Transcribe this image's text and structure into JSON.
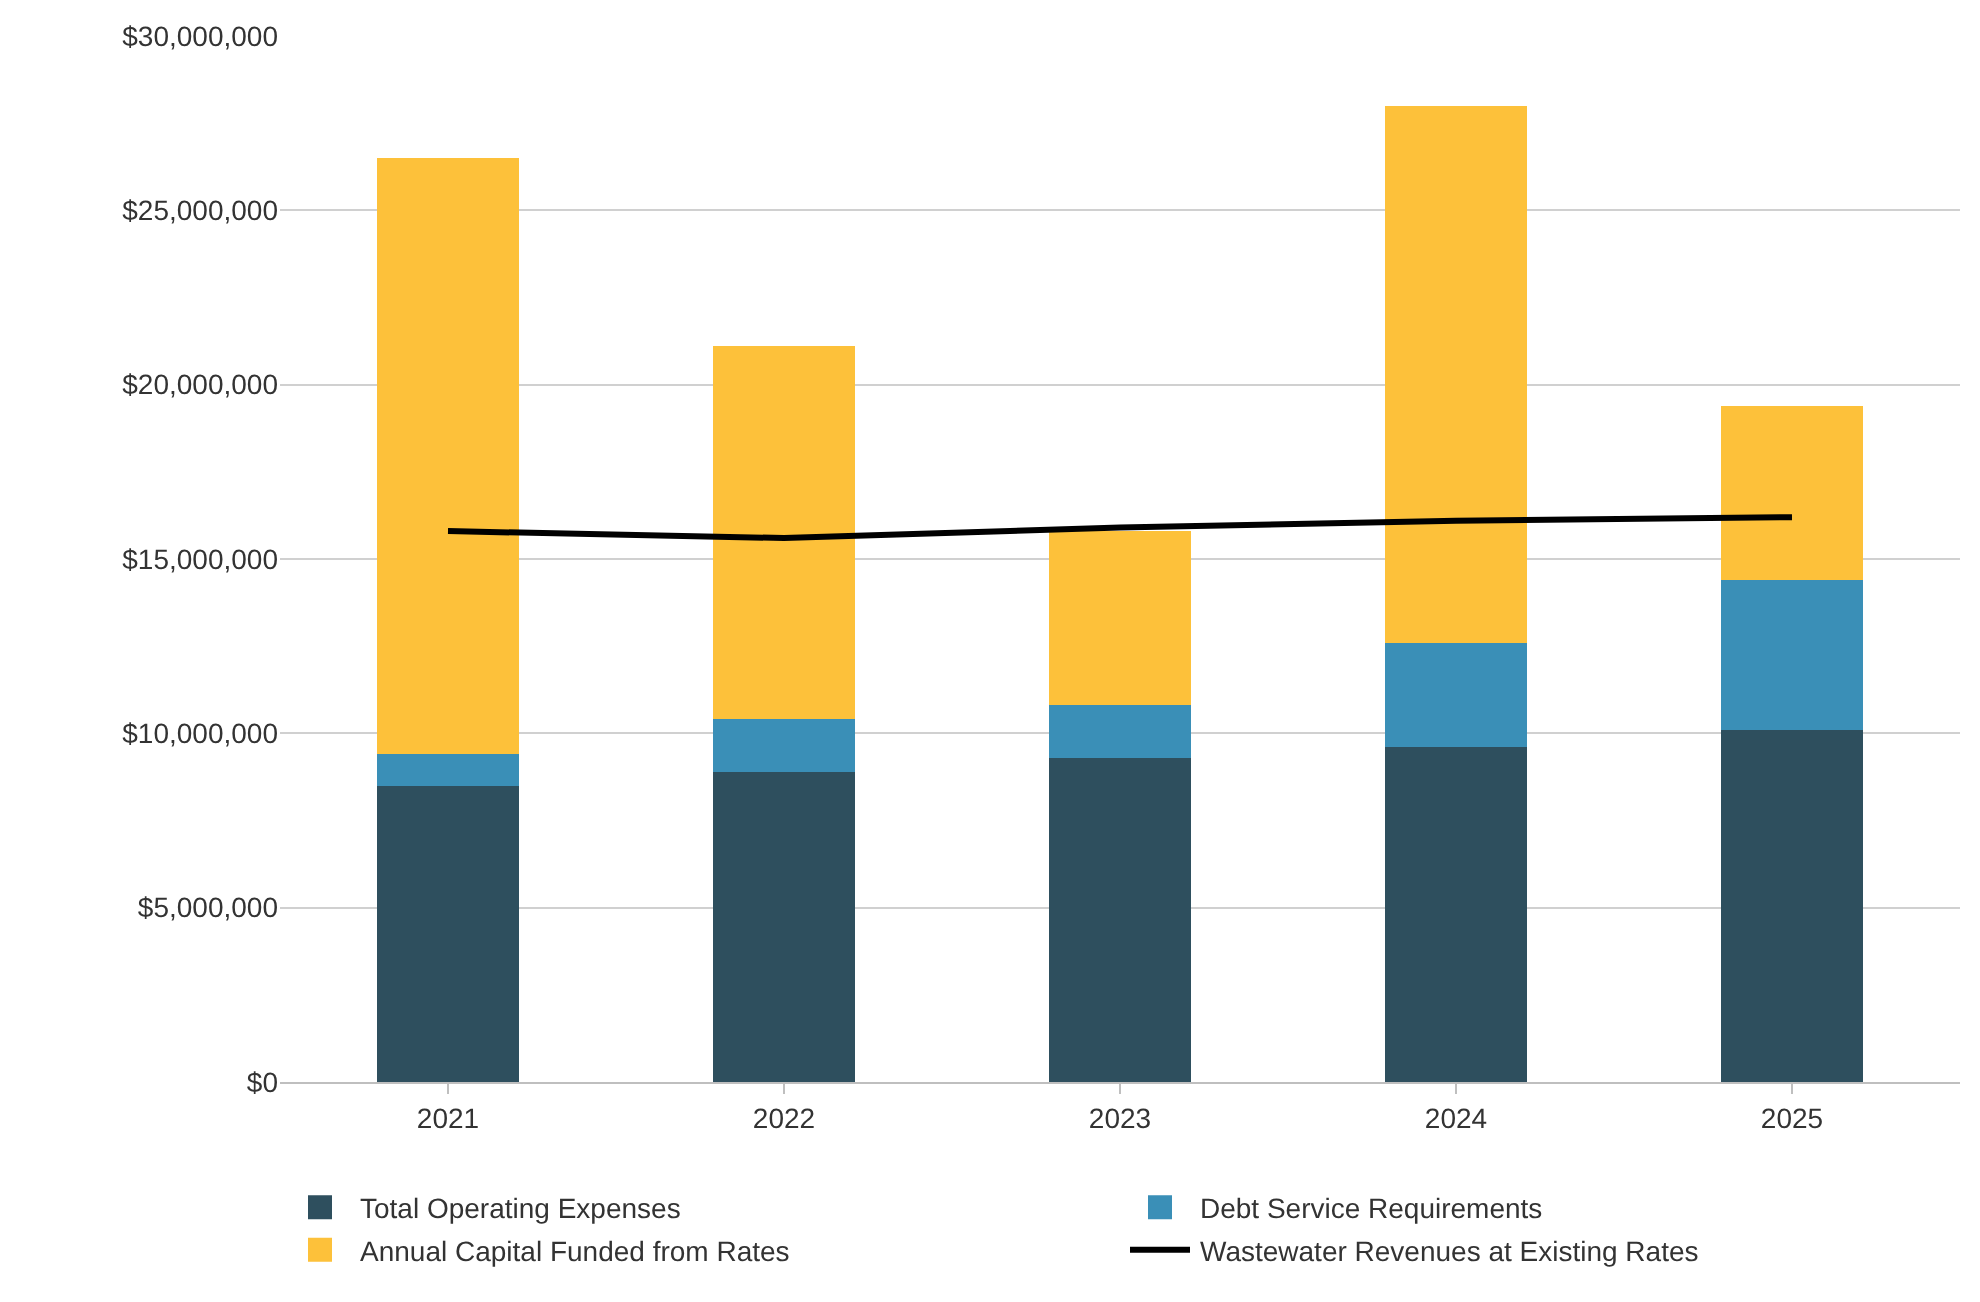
{
  "chart_data": {
    "type": "bar",
    "stacked": true,
    "categories": [
      "2021",
      "2022",
      "2023",
      "2024",
      "2025"
    ],
    "series": [
      {
        "name": "Total Operating Expenses",
        "color": "#2e4f5e",
        "values": [
          8500000,
          8900000,
          9300000,
          9600000,
          10100000
        ]
      },
      {
        "name": "Debt Service Requirements",
        "color": "#3a8fb7",
        "values": [
          900000,
          1500000,
          1500000,
          3000000,
          4300000
        ]
      },
      {
        "name": "Annual Capital Funded from Rates",
        "color": "#fdc13a",
        "values": [
          17100000,
          10700000,
          5000000,
          15400000,
          5000000
        ]
      },
      {
        "name": "Wastewater Revenues at Existing Rates",
        "color": "#000000",
        "type": "line",
        "values": [
          15800000,
          15600000,
          15900000,
          16100000,
          16200000
        ]
      }
    ],
    "ylim": [
      0,
      30000000
    ],
    "yticks": [
      {
        "value": 0,
        "label": "$0"
      },
      {
        "value": 5000000,
        "label": "$5,000,000"
      },
      {
        "value": 10000000,
        "label": "$10,000,000"
      },
      {
        "value": 15000000,
        "label": "$15,000,000"
      },
      {
        "value": 20000000,
        "label": "$20,000,000"
      },
      {
        "value": 25000000,
        "label": "$25,000,000"
      },
      {
        "value": 30000000,
        "label": "$30,000,000"
      }
    ],
    "grid": "y",
    "legend": "bottom",
    "marker": "none",
    "line_style": "solid"
  }
}
